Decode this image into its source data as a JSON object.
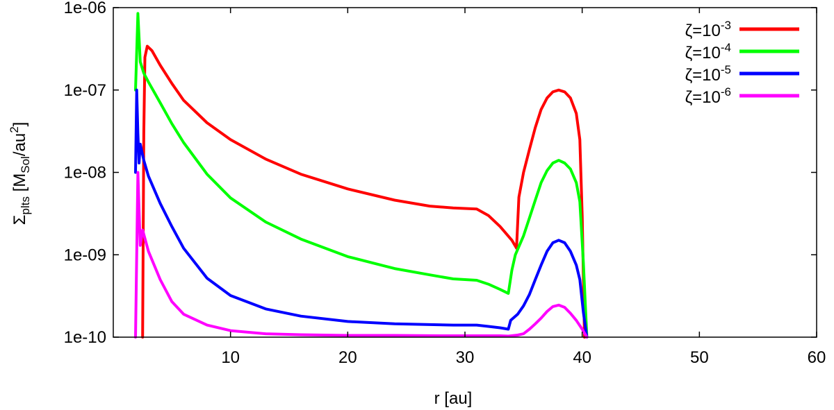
{
  "chart_data": {
    "type": "line",
    "title": "",
    "xlabel": "r [au]",
    "ylabel": {
      "main": "Σ",
      "sub": "plts",
      "text1": " [M",
      "sub2": "Sol",
      "text2": "/au",
      "sup": "2",
      "text3": "]"
    },
    "xlim": [
      0,
      60
    ],
    "ylim": [
      1e-10,
      1e-06
    ],
    "yscale": "log",
    "grid": false,
    "legend_position": "top-right",
    "x_ticks": [
      {
        "value": 10,
        "label": "10"
      },
      {
        "value": 20,
        "label": "20"
      },
      {
        "value": 30,
        "label": "30"
      },
      {
        "value": 40,
        "label": "40"
      },
      {
        "value": 50,
        "label": "50"
      },
      {
        "value": 60,
        "label": "60"
      }
    ],
    "y_ticks": [
      {
        "value": 1e-10,
        "label": "1e-10"
      },
      {
        "value": 1e-09,
        "label": "1e-09"
      },
      {
        "value": 1e-08,
        "label": "1e-08"
      },
      {
        "value": 1e-07,
        "label": "1e-07"
      },
      {
        "value": 1e-06,
        "label": "1e-06"
      }
    ],
    "series": [
      {
        "name": "ζ=10⁻³",
        "name_base": "ζ=10",
        "name_exp": "-3",
        "color": "#ff0000",
        "x": [
          2.5,
          2.6,
          2.7,
          2.9,
          3.3,
          4.0,
          5.0,
          6.0,
          8.0,
          10.0,
          13.0,
          16.0,
          20.0,
          24.0,
          27.0,
          29.0,
          31.0,
          32.0,
          33.0,
          34.0,
          34.4,
          34.6,
          35.0,
          35.5,
          36.0,
          36.5,
          37.0,
          37.5,
          38.0,
          38.5,
          39.0,
          39.5,
          39.8,
          40.0,
          40.2
        ],
        "y": [
          1e-10,
          3e-08,
          2.5e-07,
          3.4e-07,
          3e-07,
          2e-07,
          1.2e-07,
          7.5e-08,
          4e-08,
          2.5e-08,
          1.45e-08,
          9.5e-09,
          6.3e-09,
          4.6e-09,
          3.9e-09,
          3.7e-09,
          3.6e-09,
          3e-09,
          2.2e-09,
          1.5e-09,
          1.2e-09,
          5e-09,
          1e-08,
          1.9e-08,
          3.5e-08,
          5.8e-08,
          8e-08,
          9.5e-08,
          1e-07,
          9.5e-08,
          8e-08,
          5.2e-08,
          2.5e-08,
          3e-09,
          1e-10
        ]
      },
      {
        "name": "ζ=10⁻⁴",
        "name_base": "ζ=10",
        "name_exp": "-4",
        "color": "#00ff00",
        "x": [
          1.9,
          2.1,
          2.3,
          2.6,
          3.0,
          4.0,
          5.0,
          6.0,
          8.0,
          10.0,
          13.0,
          16.0,
          20.0,
          24.0,
          27.0,
          29.0,
          31.0,
          32.0,
          33.0,
          33.7,
          34.0,
          34.3,
          35.0,
          35.5,
          36.0,
          36.5,
          37.0,
          37.5,
          38.0,
          38.5,
          39.0,
          39.5,
          39.8,
          40.1,
          40.4
        ],
        "y": [
          1e-07,
          8.5e-07,
          2.2e-07,
          1.6e-07,
          1.25e-07,
          7e-08,
          3.9e-08,
          2.3e-08,
          9.5e-09,
          4.9e-09,
          2.5e-09,
          1.55e-09,
          9.5e-10,
          6.8e-10,
          5.7e-10,
          5.1e-10,
          4.9e-10,
          4.4e-10,
          3.8e-10,
          3.4e-10,
          6.5e-10,
          1e-09,
          1.7e-09,
          2.8e-09,
          4.6e-09,
          7.5e-09,
          1.05e-08,
          1.3e-08,
          1.4e-08,
          1.3e-08,
          1.1e-08,
          7.5e-09,
          4.4e-09,
          8e-10,
          1e-10
        ]
      },
      {
        "name": "ζ=10⁻⁵",
        "name_base": "ζ=10",
        "name_exp": "-5",
        "color": "#0000ff",
        "x": [
          1.9,
          2.0,
          2.1,
          2.2,
          2.3,
          2.6,
          3.0,
          4.0,
          5.0,
          6.0,
          8.0,
          10.0,
          13.0,
          16.0,
          20.0,
          24.0,
          27.0,
          29.0,
          31.0,
          32.0,
          33.0,
          33.7,
          33.9,
          34.5,
          35.0,
          35.5,
          36.0,
          36.5,
          37.0,
          37.5,
          38.0,
          38.5,
          39.0,
          39.5,
          39.8,
          40.1,
          40.4
        ],
        "y": [
          1e-08,
          1e-07,
          3e-08,
          1.3e-08,
          2.2e-08,
          1.4e-08,
          9e-09,
          4.2e-09,
          2.2e-09,
          1.2e-09,
          5.2e-10,
          3.2e-10,
          2.2e-10,
          1.8e-10,
          1.55e-10,
          1.45e-10,
          1.42e-10,
          1.4e-10,
          1.4e-10,
          1.35e-10,
          1.3e-10,
          1.25e-10,
          1.6e-10,
          1.9e-10,
          2.4e-10,
          3.3e-10,
          5e-10,
          7.5e-10,
          1.1e-09,
          1.4e-09,
          1.5e-09,
          1.4e-09,
          1.1e-09,
          7.5e-10,
          5e-10,
          2e-10,
          1e-10
        ]
      },
      {
        "name": "ζ=10⁻⁶",
        "name_base": "ζ=10",
        "name_exp": "-6",
        "color": "#ff00ff",
        "x": [
          1.9,
          2.0,
          2.1,
          2.2,
          2.3,
          2.5,
          3.0,
          4.0,
          5.0,
          6.0,
          8.0,
          10.0,
          13.0,
          16.0,
          20.0,
          24.0,
          28.0,
          31.0,
          33.0,
          33.7,
          34.5,
          35.0,
          35.5,
          36.0,
          36.5,
          37.0,
          37.5,
          38.0,
          38.5,
          39.0,
          39.5,
          40.0,
          40.4
        ],
        "y": [
          1e-10,
          1e-09,
          1e-08,
          3.5e-09,
          1.3e-09,
          2e-09,
          1.1e-09,
          5e-10,
          2.7e-10,
          1.9e-10,
          1.4e-10,
          1.2e-10,
          1.1e-10,
          1.07e-10,
          1.05e-10,
          1.05e-10,
          1.04e-10,
          1.04e-10,
          1.04e-10,
          1.03e-10,
          1.06e-10,
          1.1e-10,
          1.25e-10,
          1.45e-10,
          1.7e-10,
          2.05e-10,
          2.35e-10,
          2.45e-10,
          2.3e-10,
          1.95e-10,
          1.6e-10,
          1.25e-10,
          1e-10
        ]
      }
    ]
  }
}
